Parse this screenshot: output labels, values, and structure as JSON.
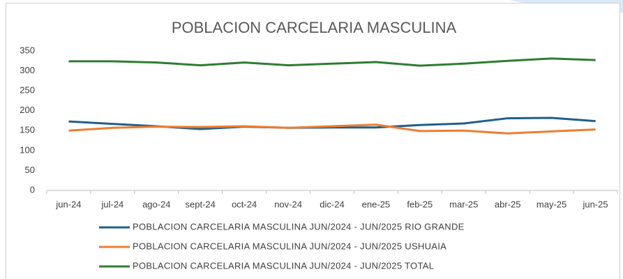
{
  "chart_data": {
    "type": "line",
    "title": "POBLACION CARCELARIA MASCULINA",
    "categories": [
      "jun-24",
      "jul-24",
      "ago-24",
      "sept-24",
      "oct-24",
      "nov-24",
      "dic-24",
      "ene-25",
      "feb-25",
      "mar-25",
      "abr-25",
      "may-25",
      "jun-25"
    ],
    "series": [
      {
        "name": "POBLACION CARCELARIA MASCULINA JUN/2024 - JUN/2025 RIO GRANDE",
        "color": "#1f5f8b",
        "values": [
          173,
          167,
          161,
          154,
          160,
          157,
          158,
          158,
          164,
          168,
          181,
          182,
          174
        ]
      },
      {
        "name": "POBLACION CARCELARIA MASCULINA JUN/2024 - JUN/2025 USHUAIA",
        "color": "#ed7d31",
        "values": [
          150,
          157,
          160,
          159,
          161,
          157,
          161,
          165,
          149,
          150,
          143,
          148,
          153
        ]
      },
      {
        "name": "POBLACION CARCELARIA MASCULINA JUN/2024 - JUN/2025 TOTAL",
        "color": "#2e7d32",
        "values": [
          324,
          324,
          321,
          314,
          321,
          314,
          318,
          322,
          313,
          318,
          325,
          331,
          327
        ]
      }
    ],
    "ylim": [
      0,
      350
    ],
    "yticks": [
      0,
      50,
      100,
      150,
      200,
      250,
      300,
      350
    ],
    "grid": false
  }
}
